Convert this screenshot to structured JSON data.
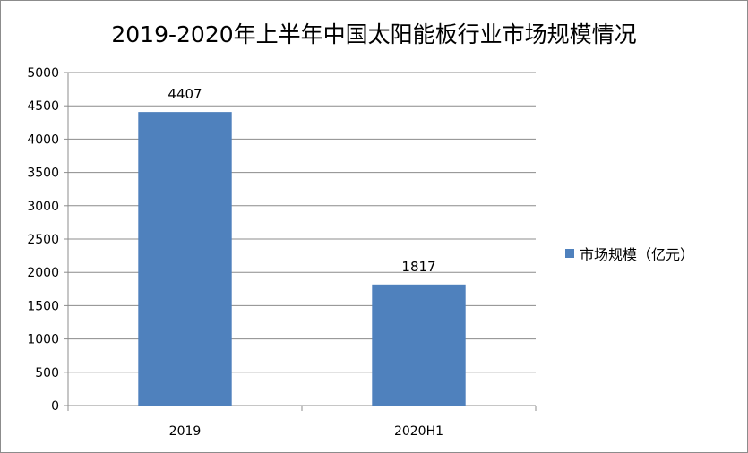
{
  "chart_data": {
    "type": "bar",
    "title": "2019-2020年上半年中国太阳能板行业市场规模情况",
    "categories": [
      "2019",
      "2020H1"
    ],
    "series": [
      {
        "name": "市场规模（亿元）",
        "values": [
          4407,
          1817
        ],
        "color": "#4f81bd"
      }
    ],
    "ylim": [
      0,
      5000
    ],
    "yticks": [
      0,
      500,
      1000,
      1500,
      2000,
      2500,
      3000,
      3500,
      4000,
      4500,
      5000
    ],
    "xlabel": "",
    "ylabel": "",
    "grid": true,
    "legend_position": "right"
  }
}
